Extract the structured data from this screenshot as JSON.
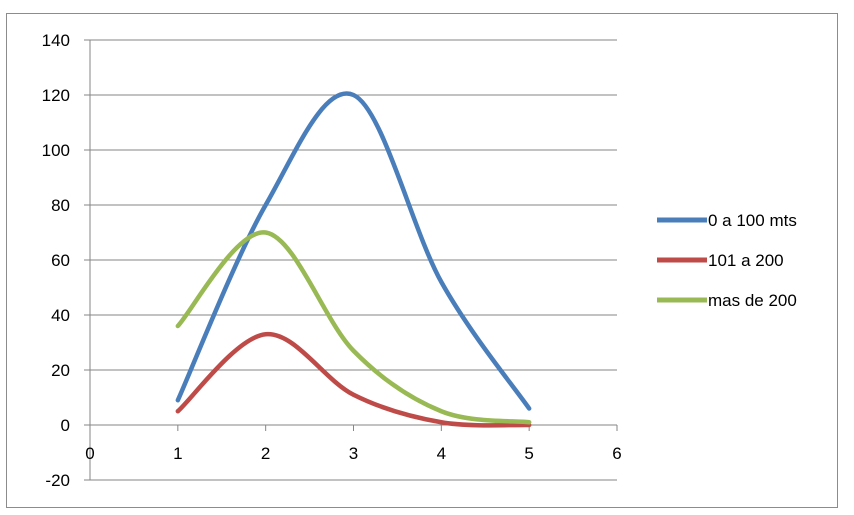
{
  "chart_data": {
    "type": "line",
    "smooth": true,
    "xlim": [
      0,
      6
    ],
    "ylim": [
      -20,
      140
    ],
    "x_ticks": [
      "0",
      "1",
      "2",
      "3",
      "4",
      "5",
      "6"
    ],
    "y_ticks": [
      "-20",
      "0",
      "20",
      "40",
      "60",
      "80",
      "100",
      "120",
      "140"
    ],
    "grid": "horizontal",
    "legend_position": "right",
    "series": [
      {
        "name": "0 a 100 mts",
        "color": "#4a7ebb",
        "x": [
          1,
          2,
          3,
          4,
          5
        ],
        "y": [
          9,
          80,
          120,
          52,
          6
        ]
      },
      {
        "name": "101 a 200",
        "color": "#be4b48",
        "x": [
          1,
          2,
          3,
          4,
          5
        ],
        "y": [
          5,
          33,
          11,
          1,
          0
        ]
      },
      {
        "name": "mas de 200",
        "color": "#98b954",
        "x": [
          1,
          2,
          3,
          4,
          5
        ],
        "y": [
          36,
          70,
          27,
          5,
          1
        ]
      }
    ]
  }
}
